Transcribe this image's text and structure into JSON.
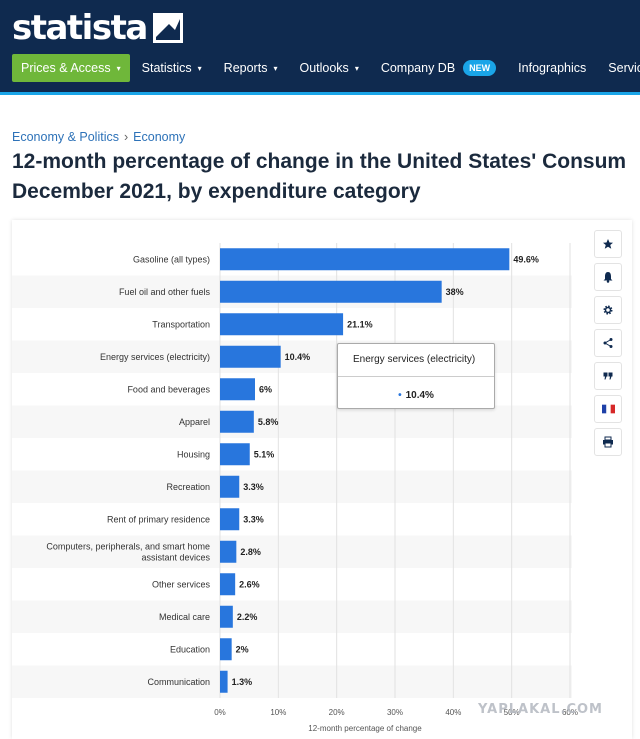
{
  "header": {
    "logo_text": "statista",
    "nav": [
      {
        "label": "Prices & Access",
        "caret": "▾"
      },
      {
        "label": "Statistics",
        "caret": "▾"
      },
      {
        "label": "Reports",
        "caret": "▾"
      },
      {
        "label": "Outlooks",
        "caret": "▾"
      },
      {
        "label": "Company DB",
        "badge": "NEW"
      },
      {
        "label": "Infographics"
      },
      {
        "label": "Services",
        "caret": "▾"
      }
    ]
  },
  "breadcrumb": {
    "items": [
      "Economy & Politics",
      "Economy"
    ],
    "separator": "›"
  },
  "page": {
    "title_line1": "12-month percentage of change in the United States' Consum",
    "title_line2": "December 2021, by expenditure category"
  },
  "chart_data": {
    "type": "bar",
    "orientation": "horizontal",
    "categories": [
      "Gasoline (all types)",
      "Fuel oil and other fuels",
      "Transportation",
      "Energy services (electricity)",
      "Food and beverages",
      "Apparel",
      "Housing",
      "Recreation",
      "Rent of primary residence",
      [
        "Computers, peripherals, and smart home",
        "assistant devices"
      ],
      "Other services",
      "Medical care",
      "Education",
      "Communication"
    ],
    "values": [
      49.6,
      38,
      21.1,
      10.4,
      6,
      5.8,
      5.1,
      3.3,
      3.3,
      2.8,
      2.6,
      2.2,
      2,
      1.3
    ],
    "value_labels": [
      "49.6%",
      "38%",
      "21.1%",
      "10.4%",
      "6%",
      "5.8%",
      "5.1%",
      "3.3%",
      "3.3%",
      "2.8%",
      "2.6%",
      "2.2%",
      "2%",
      "1.3%"
    ],
    "xlim": [
      0,
      60
    ],
    "xticks": [
      0,
      10,
      20,
      30,
      40,
      50,
      60
    ],
    "xtick_labels": [
      "0%",
      "10%",
      "20%",
      "30%",
      "40%",
      "50%",
      "60%"
    ],
    "xlabel": "12-month percentage of change",
    "bar_color": "#2876dd",
    "grid": true
  },
  "tooltip": {
    "title": "Energy services (electricity)",
    "bullet": "•",
    "value": "10.4%"
  },
  "toolbar": {
    "icons": [
      "star-icon",
      "bell-icon",
      "gear-icon",
      "share-icon",
      "quote-icon",
      "french-flag-icon",
      "print-icon"
    ]
  },
  "watermark": {
    "text": "YAPLAKAL.COM"
  }
}
